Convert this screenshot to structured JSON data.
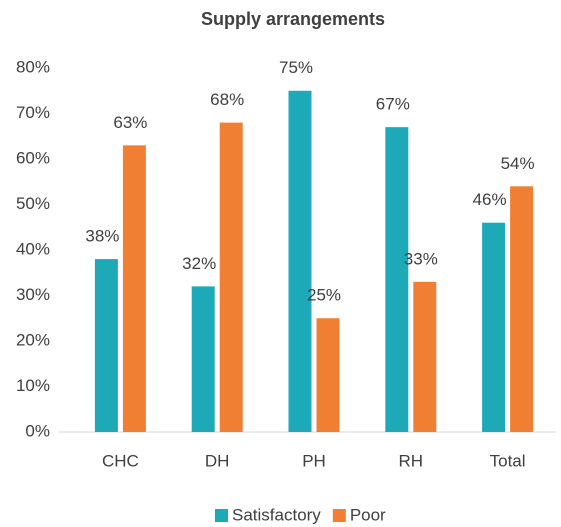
{
  "chart_data": {
    "type": "bar",
    "title": "Supply arrangements",
    "categories": [
      "CHC",
      "DH",
      "PH",
      "RH",
      "Total"
    ],
    "series": [
      {
        "name": "Satisfactory",
        "color": "#1ea9b8",
        "values": [
          38,
          32,
          75,
          67,
          46
        ],
        "value_labels": [
          "38%",
          "32%",
          "75%",
          "67%",
          "46%"
        ]
      },
      {
        "name": "Poor",
        "color": "#f07f34",
        "values": [
          63,
          68,
          25,
          33,
          54
        ],
        "value_labels": [
          "63%",
          "68%",
          "25%",
          "33%",
          "54%"
        ]
      }
    ],
    "ylim": [
      0,
      80
    ],
    "yticks": [
      {
        "value": 0,
        "label": "0%"
      },
      {
        "value": 10,
        "label": "10%"
      },
      {
        "value": 20,
        "label": "20%"
      },
      {
        "value": 30,
        "label": "30%"
      },
      {
        "value": 40,
        "label": "40%"
      },
      {
        "value": 50,
        "label": "50%"
      },
      {
        "value": 60,
        "label": "60%"
      },
      {
        "value": 70,
        "label": "70%"
      },
      {
        "value": 80,
        "label": "80%"
      }
    ],
    "grid": false,
    "legend": "bottom"
  }
}
